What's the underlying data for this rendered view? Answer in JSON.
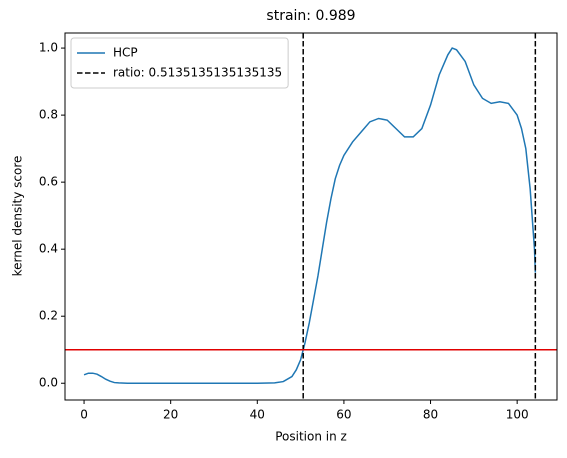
{
  "chart_data": {
    "type": "line",
    "title": "strain: 0.989",
    "xlabel": "Position in z",
    "ylabel": "kernel density score",
    "x": [
      0,
      1,
      2,
      3,
      4,
      5,
      6,
      7,
      8,
      10,
      20,
      30,
      40,
      44,
      46,
      48,
      49,
      50,
      51,
      52,
      53,
      54,
      55,
      56,
      57,
      58,
      59,
      60,
      62,
      64,
      66,
      68,
      70,
      72,
      74,
      76,
      78,
      80,
      82,
      84,
      85,
      86,
      88,
      90,
      92,
      94,
      96,
      98,
      100,
      101,
      102,
      103,
      104,
      104.2
    ],
    "series": [
      {
        "name": "HCP",
        "color": "#1f77b4",
        "values": [
          0.025,
          0.03,
          0.03,
          0.027,
          0.02,
          0.012,
          0.006,
          0.002,
          0.001,
          0,
          0,
          0,
          0,
          0.001,
          0.005,
          0.02,
          0.04,
          0.07,
          0.12,
          0.18,
          0.25,
          0.32,
          0.4,
          0.48,
          0.55,
          0.61,
          0.65,
          0.68,
          0.72,
          0.75,
          0.78,
          0.79,
          0.785,
          0.76,
          0.735,
          0.735,
          0.76,
          0.83,
          0.92,
          0.98,
          1.0,
          0.995,
          0.96,
          0.89,
          0.85,
          0.835,
          0.84,
          0.835,
          0.8,
          0.76,
          0.7,
          0.58,
          0.4,
          0.33
        ]
      }
    ],
    "vlines": {
      "name": "ratio: 0.5135135135135135",
      "color": "#000000",
      "values": [
        50.6,
        104.2
      ]
    },
    "hline": {
      "value": 0.1,
      "color": "#e00000"
    },
    "xlim": [
      -4.4,
      109.2
    ],
    "ylim": [
      -0.05,
      1.045
    ],
    "xticks": [
      0,
      20,
      40,
      60,
      80,
      100
    ],
    "yticks": [
      {
        "value": 0,
        "label": "0.0"
      },
      {
        "value": 0.2,
        "label": "0.2"
      },
      {
        "value": 0.4,
        "label": "0.4"
      },
      {
        "value": 0.6,
        "label": "0.6"
      },
      {
        "value": 0.8,
        "label": "0.8"
      },
      {
        "value": 1.0,
        "label": "1.0"
      }
    ],
    "legend": "upper left"
  }
}
